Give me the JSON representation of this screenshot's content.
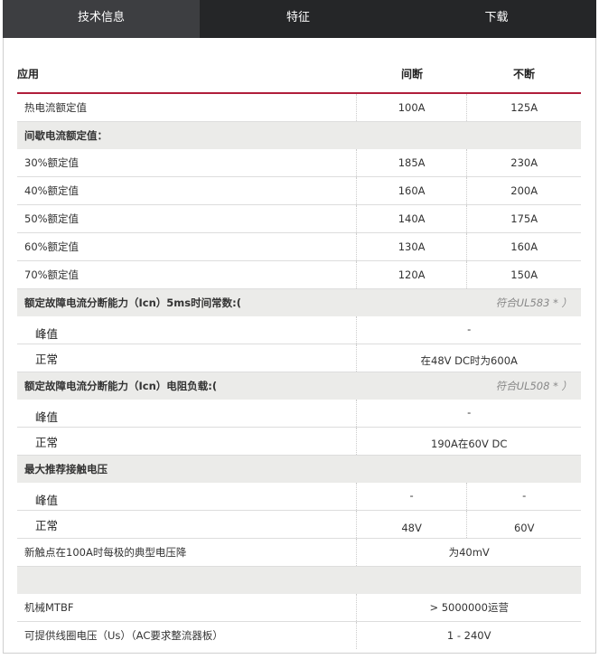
{
  "tabs": [
    {
      "label": "技术信息",
      "active": true
    },
    {
      "label": "特征",
      "active": false
    },
    {
      "label": "下载",
      "active": false
    }
  ],
  "table": {
    "headers": [
      "应用",
      "间断",
      "不断"
    ],
    "rows": [
      {
        "type": "row",
        "label": "热电流额定值",
        "c2": "100A",
        "c3": "125A"
      },
      {
        "type": "section",
        "label": "间歇电流额定值：",
        "note": ""
      },
      {
        "type": "row",
        "label": "30%额定值",
        "c2": "185A",
        "c3": "230A"
      },
      {
        "type": "row",
        "label": "40%额定值",
        "c2": "160A",
        "c3": "200A"
      },
      {
        "type": "row",
        "label": "50%额定值",
        "c2": "140A",
        "c3": "175A"
      },
      {
        "type": "row",
        "label": "60%额定值",
        "c2": "130A",
        "c3": "160A"
      },
      {
        "type": "row",
        "label": "70%额定值",
        "c2": "120A",
        "c3": "150A"
      },
      {
        "type": "section",
        "label": "额定故障电流分断能力（Icn）5ms时间常数:(",
        "note": "符合UL583 * ）"
      },
      {
        "type": "subtop",
        "label": "峰值",
        "merged": "-"
      },
      {
        "type": "subbot",
        "label": "正常",
        "merged": "在48V DC时为600A"
      },
      {
        "type": "section",
        "label": "额定故障电流分断能力（Icn）电阻负载:(",
        "note": "符合UL508 * ）"
      },
      {
        "type": "subtop",
        "label": "峰值",
        "merged": "-"
      },
      {
        "type": "subbot",
        "label": "正常",
        "merged": "190A在60V DC"
      },
      {
        "type": "section",
        "label": "最大推荐接触电压",
        "note": ""
      },
      {
        "type": "subtop",
        "label": "峰值",
        "c2": "-",
        "c3": "-"
      },
      {
        "type": "subbot",
        "label": "正常",
        "c2": "48V",
        "c3": "60V"
      },
      {
        "type": "row",
        "label": "新触点在100A时每极的典型电压降",
        "merged": "为40mV"
      },
      {
        "type": "section",
        "label": "",
        "note": ""
      },
      {
        "type": "row",
        "label": "机械MTBF",
        "merged": "> 5000000运营"
      },
      {
        "type": "rowlast",
        "label": "可提供线圈电压（Us）（AC要求整流器板）",
        "merged": "1 - 240V"
      }
    ]
  },
  "colors": {
    "tab_bar": "#252628",
    "tab_active": "#3d3e41",
    "accent_line": "#b01e3b",
    "section_bg": "#ebebe9"
  }
}
